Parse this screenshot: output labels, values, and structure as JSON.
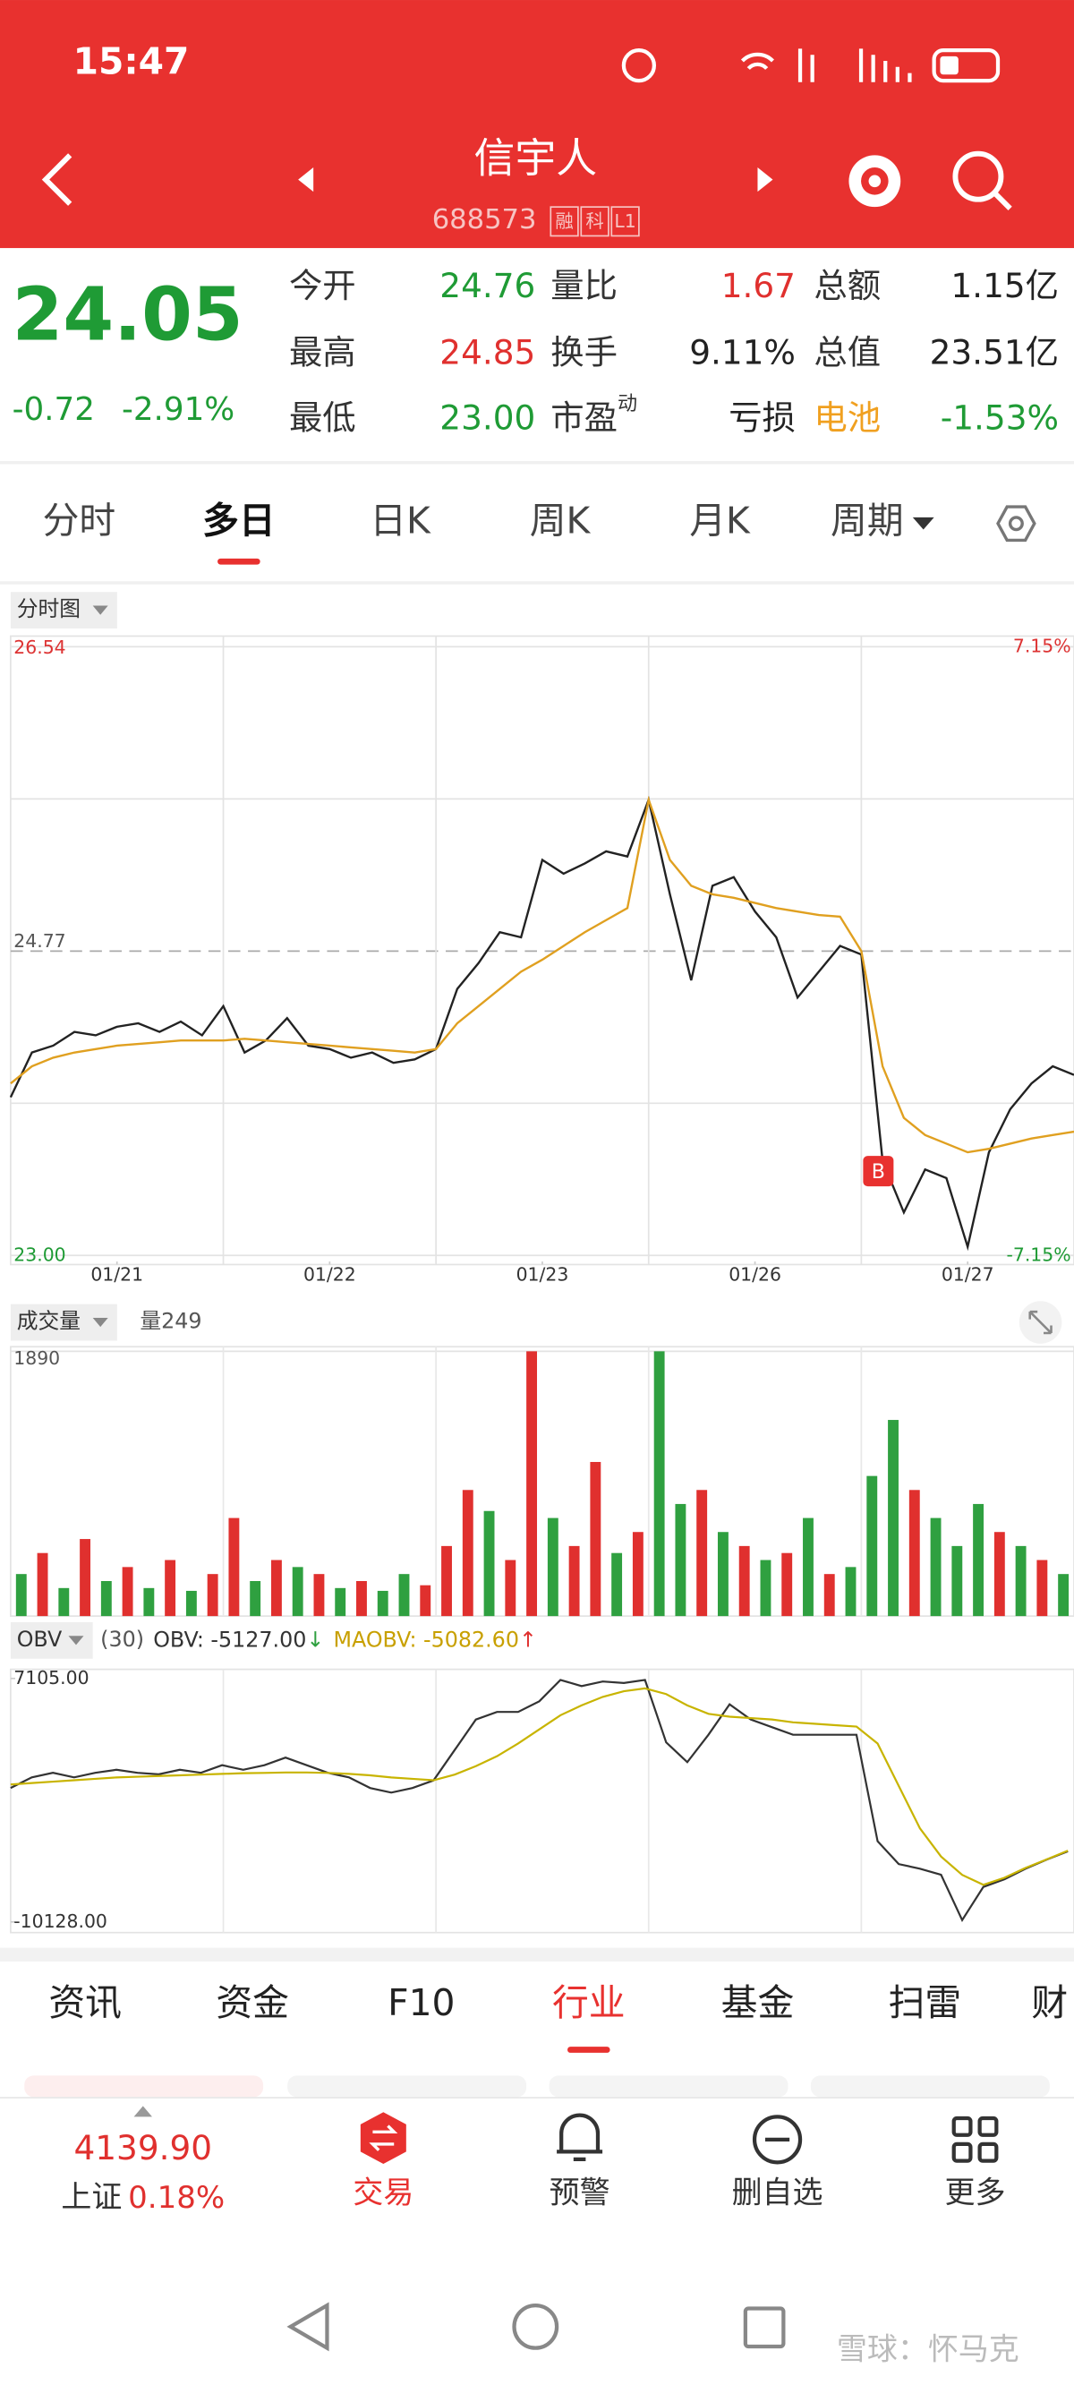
{
  "status_bar": {
    "time": "15:47"
  },
  "header": {
    "title": "信宇人",
    "code": "688573",
    "badges": [
      "融",
      "科",
      "L1"
    ]
  },
  "quote": {
    "price": "24.05",
    "change": "-0.72",
    "change_pct": "-2.91%",
    "color": "#1f9b35",
    "rows": [
      [
        {
          "label": "今开",
          "value": "24.76",
          "color": "#1f9b35"
        },
        {
          "label": "量比",
          "value": "1.67",
          "color": "#e0302e"
        },
        {
          "label": "总额",
          "value": "1.15亿",
          "color": "#222222"
        }
      ],
      [
        {
          "label": "最高",
          "value": "24.85",
          "color": "#e0302e"
        },
        {
          "label": "换手",
          "value": "9.11%",
          "color": "#222222"
        },
        {
          "label": "总值",
          "value": "23.51亿",
          "color": "#222222"
        }
      ],
      [
        {
          "label": "最低",
          "value": "23.00",
          "color": "#1f9b35"
        },
        {
          "label": "市盈",
          "sup": "动",
          "value": "亏损",
          "color": "#222222"
        },
        {
          "label": "电池",
          "label_color": "#f0a020",
          "value": "-1.53%",
          "color": "#1f9b35"
        }
      ]
    ]
  },
  "period_tabs": {
    "items": [
      "分时",
      "多日",
      "日K",
      "周K",
      "月K",
      "周期"
    ],
    "selected": 1
  },
  "chart_data": [
    {
      "type": "line",
      "label": "分时图",
      "x": [
        0,
        0.1,
        0.2,
        0.3,
        0.4,
        0.5,
        0.6,
        0.7,
        0.8,
        0.9,
        1,
        1.1,
        1.2,
        1.3,
        1.4,
        1.5,
        1.6,
        1.7,
        1.8,
        1.9,
        2,
        2.1,
        2.2,
        2.3,
        2.4,
        2.5,
        2.6,
        2.7,
        2.8,
        2.9,
        3,
        3.1,
        3.2,
        3.3,
        3.4,
        3.5,
        3.6,
        3.7,
        3.8,
        3.9,
        4,
        4.1,
        4.2,
        4.3,
        4.4,
        4.5,
        4.6,
        4.7,
        4.8,
        4.9,
        5
      ],
      "xlim": [
        0,
        5
      ],
      "xticks": [
        {
          "value": 0.5,
          "label": "01/21"
        },
        {
          "value": 1.5,
          "label": "01/22"
        },
        {
          "value": 2.5,
          "label": "01/23"
        },
        {
          "value": 3.5,
          "label": "01/26"
        },
        {
          "value": 4.5,
          "label": "01/27"
        }
      ],
      "ylim": [
        23,
        26.54
      ],
      "yticks": [
        {
          "value": 23,
          "label": "23.00"
        },
        {
          "value": 24.77,
          "label": "24.77"
        },
        {
          "value": 26.54,
          "label": "26.54"
        }
      ],
      "y2lim": [
        -7.15,
        7.15
      ],
      "y2ticks": [
        {
          "value": -7.15,
          "label": "-7.15%"
        },
        {
          "value": 7.15,
          "label": "7.15%"
        }
      ],
      "series": [
        {
          "color": "#222222",
          "values": [
            23.92,
            24.18,
            24.22,
            24.3,
            24.28,
            24.33,
            24.35,
            24.3,
            24.36,
            24.28,
            24.45,
            24.18,
            24.25,
            24.38,
            24.22,
            24.2,
            24.15,
            24.18,
            24.12,
            24.14,
            24.2,
            24.55,
            24.7,
            24.88,
            24.85,
            25.3,
            25.22,
            25.28,
            25.35,
            25.32,
            25.65,
            25.1,
            24.6,
            25.15,
            25.2,
            25,
            24.85,
            24.5,
            24.65,
            24.8,
            24.75,
            23.55,
            23.25,
            23.5,
            23.45,
            23.05,
            23.6,
            23.85,
            24,
            24.1,
            24.05
          ]
        },
        {
          "color": "#e0a020",
          "values": [
            24,
            24.1,
            24.15,
            24.18,
            24.2,
            24.22,
            24.23,
            24.24,
            24.25,
            24.25,
            24.25,
            24.26,
            24.25,
            24.24,
            24.23,
            24.22,
            24.21,
            24.2,
            24.19,
            24.18,
            24.2,
            24.35,
            24.45,
            24.55,
            24.65,
            24.72,
            24.8,
            24.88,
            24.95,
            25.02,
            25.65,
            25.3,
            25.15,
            25.1,
            25.08,
            25.05,
            25.02,
            25,
            24.98,
            24.97,
            24.77,
            24.1,
            23.8,
            23.7,
            23.65,
            23.6,
            23.62,
            23.65,
            23.68,
            23.7,
            23.72
          ]
        }
      ],
      "annotation": {
        "text": "B",
        "x": 4.08,
        "y": 23.49
      }
    },
    {
      "type": "bar",
      "label": "成交量",
      "indicator": "量249",
      "ylim": [
        0,
        1890
      ],
      "yticks": [
        1890
      ],
      "values": [
        300,
        450,
        200,
        550,
        250,
        350,
        200,
        400,
        180,
        300,
        700,
        250,
        400,
        350,
        300,
        200,
        250,
        180,
        300,
        220,
        500,
        900,
        750,
        400,
        1890,
        700,
        500,
        1100,
        450,
        600,
        1890,
        800,
        900,
        600,
        500,
        400,
        450,
        700,
        300,
        350,
        1000,
        1400,
        900,
        700,
        500,
        800,
        600,
        500,
        400,
        300
      ],
      "colors": [
        "#2fa040",
        "#e0302e",
        "#2fa040",
        "#e0302e",
        "#2fa040",
        "#e0302e",
        "#2fa040",
        "#e0302e",
        "#2fa040",
        "#e0302e",
        "#e0302e",
        "#2fa040",
        "#e0302e",
        "#2fa040",
        "#e0302e",
        "#2fa040",
        "#e0302e",
        "#2fa040",
        "#2fa040",
        "#e0302e",
        "#e0302e",
        "#e0302e",
        "#2fa040",
        "#e0302e",
        "#e0302e",
        "#2fa040",
        "#e0302e",
        "#e0302e",
        "#2fa040",
        "#e0302e",
        "#2fa040",
        "#2fa040",
        "#e0302e",
        "#2fa040",
        "#e0302e",
        "#2fa040",
        "#e0302e",
        "#2fa040",
        "#e0302e",
        "#2fa040",
        "#2fa040",
        "#2fa040",
        "#e0302e",
        "#2fa040",
        "#2fa040",
        "#2fa040",
        "#e0302e",
        "#2fa040",
        "#e0302e",
        "#2fa040"
      ]
    },
    {
      "type": "line",
      "label": "OBV",
      "period": "(30)",
      "ylim": [
        -10128,
        7105
      ],
      "yticks": [
        {
          "value": 7105,
          "label": "7105.00"
        },
        {
          "value": -10128,
          "label": "-10128.00"
        }
      ],
      "series": [
        {
          "name": "OBV: -5127.00",
          "trend": "↓",
          "trend_color": "#2fa040",
          "color": "#333333",
          "values": [
            -649,
            105,
            428,
            105,
            428,
            643,
            428,
            320,
            643,
            428,
            966,
            643,
            966,
            1505,
            966,
            428,
            105,
            -649,
            -973,
            -649,
            -111,
            2043,
            4197,
            4736,
            4736,
            5489,
            7000,
            6566,
            6890,
            6782,
            7000,
            2582,
            1181,
            3120,
            5274,
            4197,
            3659,
            3120,
            3120,
            3120,
            3120,
            -4419,
            -6034,
            -6358,
            -6788,
            -10000,
            -7650,
            -7111,
            -6358,
            -5711,
            -5127
          ]
        },
        {
          "name": "MAOBV: -5082.60",
          "trend": "↑",
          "trend_color": "#e0302e",
          "color": "#c8b400",
          "values": [
            -400,
            -300,
            -200,
            -100,
            0,
            100,
            150,
            200,
            250,
            300,
            350,
            400,
            420,
            450,
            450,
            420,
            350,
            250,
            100,
            0,
            -100,
            300,
            900,
            1600,
            2500,
            3500,
            4500,
            5200,
            5800,
            6200,
            6400,
            6000,
            5200,
            4600,
            4400,
            4300,
            4200,
            4000,
            3900,
            3800,
            3700,
            2500,
            -500,
            -3500,
            -5500,
            -6800,
            -7500,
            -7000,
            -6300,
            -5700,
            -5082.6
          ]
        }
      ]
    }
  ],
  "info_tabs": {
    "items": [
      "资讯",
      "资金",
      "F10",
      "行业",
      "基金",
      "扫雷",
      "财"
    ],
    "selected": 3
  },
  "bottom_nav": {
    "index_value": "4139.90",
    "index_name": "上证",
    "index_change": "0.18%",
    "items": [
      "交易",
      "预警",
      "删自选",
      "更多"
    ]
  },
  "watermark": "雪球：怀马克"
}
